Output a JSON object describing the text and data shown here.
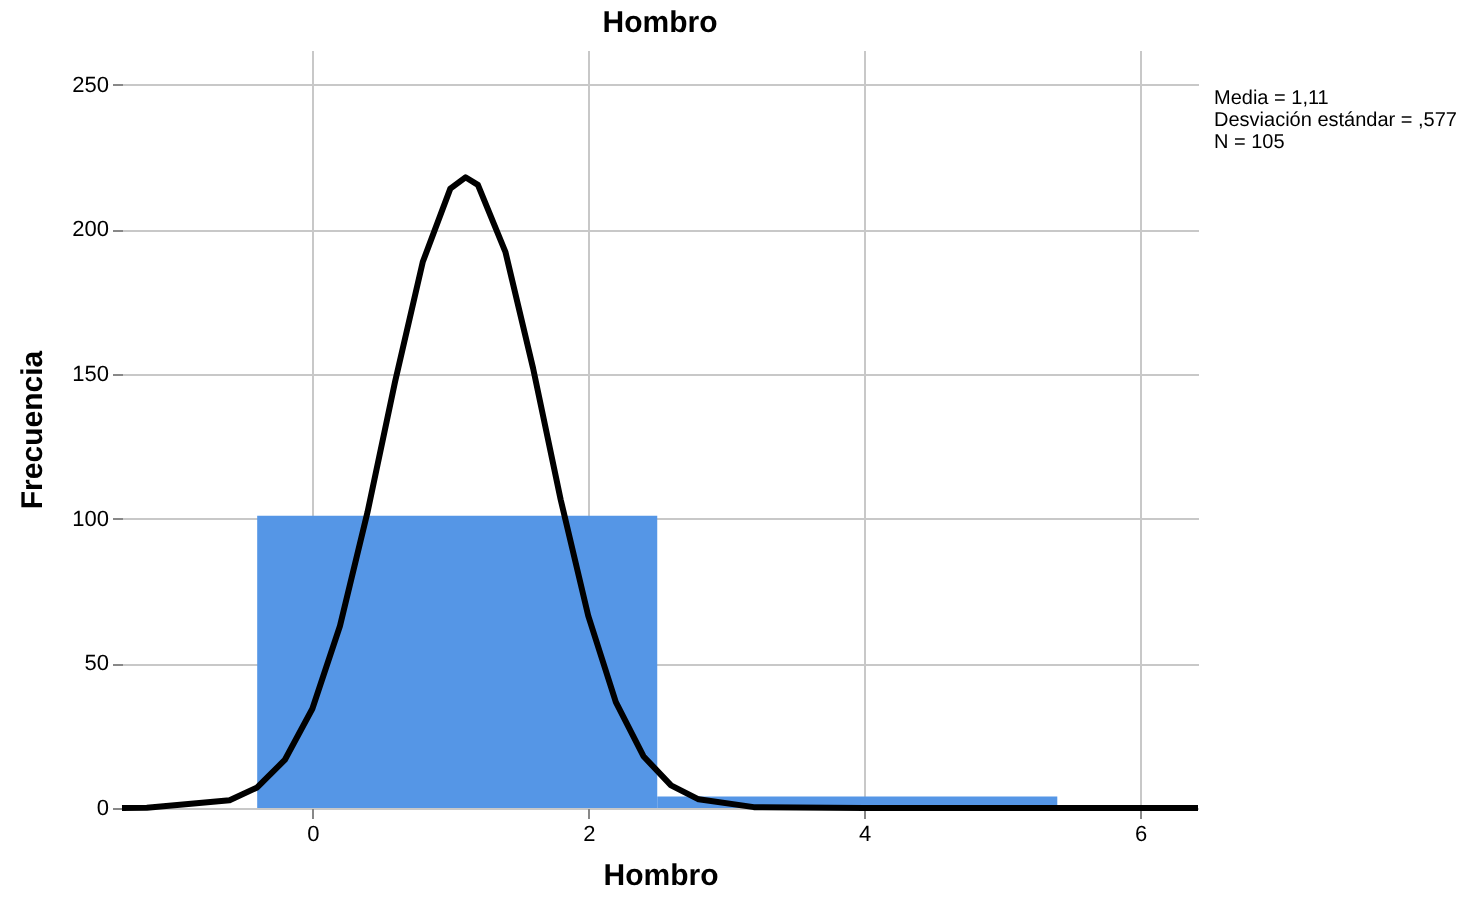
{
  "chart_data": {
    "type": "histogram",
    "title": "Hombro",
    "xlabel": "Hombro",
    "ylabel": "Frecuencia",
    "bins": [
      -0.4,
      2.5,
      5.4
    ],
    "values": [
      101,
      4
    ],
    "color": "#5596e6",
    "series": [
      {
        "type": "line",
        "color": "#000000",
        "x": [
          -1.38,
          -1.2,
          -0.6,
          -0.4,
          -0.2,
          0,
          0.2,
          0.4,
          0.6,
          0.8,
          1.0,
          1.11,
          1.2,
          1.4,
          1.6,
          1.8,
          2.0,
          2.2,
          2.4,
          2.6,
          2.8,
          3.2,
          4,
          5,
          6.42
        ],
        "values": [
          0,
          0.1,
          2.7,
          7.1,
          16.6,
          34.3,
          62.9,
          102.3,
          147.5,
          188.7,
          214.1,
          218,
          215.4,
          192.1,
          152.0,
          106.6,
          66.4,
          36.6,
          17.9,
          7.8,
          3.0,
          0.3,
          0,
          0,
          0
        ]
      }
    ],
    "xlim": [
      -1.38,
      6.42
    ],
    "xticks": [
      0,
      2,
      4,
      6
    ],
    "ylim": [
      0,
      262
    ],
    "yticks": [
      0,
      50,
      100,
      150,
      200,
      250
    ],
    "grid": true,
    "marker": "none",
    "line_style": "solid",
    "annotations": [
      "Media = 1,11",
      "Desviación estándar = ,577",
      "N = 105"
    ]
  }
}
